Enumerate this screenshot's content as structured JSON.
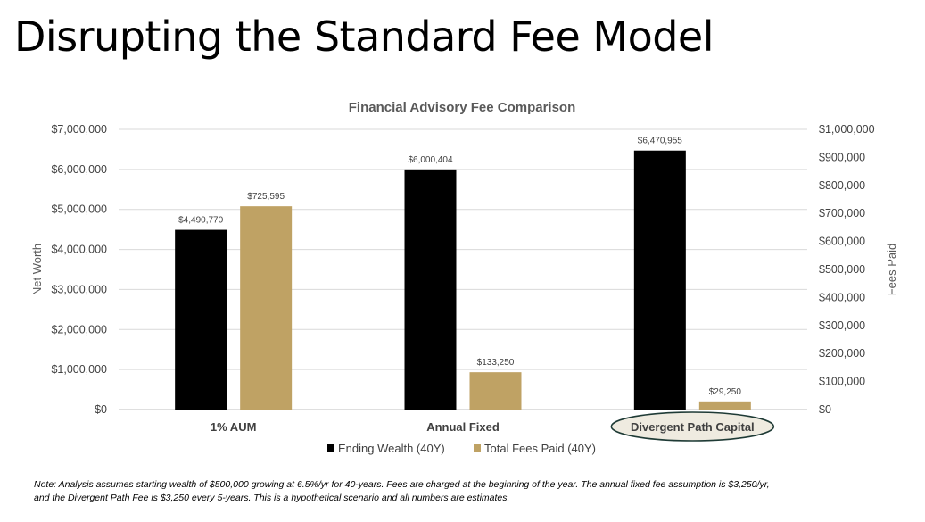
{
  "slide": {
    "title": "Disrupting the Standard Fee Model",
    "note": "Note:  Analysis assumes starting wealth of $500,000 growing at 6.5%/yr for 40-years.  Fees are charged at the beginning of the year.  The annual fixed fee assumption is $3,250/yr, and the Divergent Path Fee is $3,250 every 5-years.  This is a hypothetical scenario and all numbers are estimates."
  },
  "chart_data": {
    "type": "bar",
    "title": "Financial Advisory Fee Comparison",
    "categories": [
      "1% AUM",
      "Annual Fixed",
      "Divergent Path Capital"
    ],
    "highlighted_category": "Divergent Path Capital",
    "highlight_color": "#EFEBE0",
    "ylabel": "Net Worth",
    "y2label": "Fees Paid",
    "ylim": [
      0,
      7000000
    ],
    "y2lim": [
      0,
      1000000
    ],
    "yticks": [
      "$0",
      "$1,000,000",
      "$2,000,000",
      "$3,000,000",
      "$4,000,000",
      "$5,000,000",
      "$6,000,000",
      "$7,000,000"
    ],
    "y2ticks": [
      "$0",
      "$100,000",
      "$200,000",
      "$300,000",
      "$400,000",
      "$500,000",
      "$600,000",
      "$700,000",
      "$800,000",
      "$900,000",
      "$1,000,000"
    ],
    "grid": true,
    "legend_position": "bottom",
    "series": [
      {
        "name": "Ending Wealth (40Y)",
        "axis": "left",
        "color": "#000000",
        "values": [
          4490770,
          6000404,
          6470955
        ],
        "labels": [
          "$4,490,770",
          "$6,000,404",
          "$6,470,955"
        ]
      },
      {
        "name": "Total Fees Paid (40Y)",
        "axis": "right",
        "color": "#BFA264",
        "values": [
          725595,
          133250,
          29250
        ],
        "labels": [
          "$725,595",
          "$133,250",
          "$29,250"
        ]
      }
    ]
  }
}
